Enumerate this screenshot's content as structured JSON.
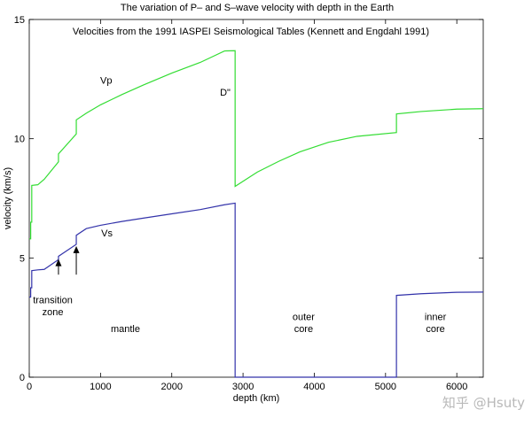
{
  "chart_data": {
    "type": "line",
    "title": "The variation of P– and S–wave velocity with depth in the Earth",
    "subtitle": "Velocities from the 1991 IASPEI Seismological Tables (Kennett and Engdahl 1991)",
    "xlabel": "depth (km)",
    "ylabel": "velocity (km/s)",
    "xlim": [
      0,
      6371
    ],
    "ylim": [
      0,
      15
    ],
    "xticks": [
      0,
      1000,
      2000,
      3000,
      4000,
      5000,
      6000
    ],
    "yticks": [
      0,
      5,
      10,
      15
    ],
    "grid": false,
    "series": [
      {
        "name": "Vp",
        "color": "#33dd33",
        "points": [
          [
            0,
            5.8
          ],
          [
            20,
            5.8
          ],
          [
            20,
            6.5
          ],
          [
            35,
            6.5
          ],
          [
            35,
            8.04
          ],
          [
            120,
            8.07
          ],
          [
            210,
            8.3
          ],
          [
            210,
            8.3
          ],
          [
            410,
            9.03
          ],
          [
            410,
            9.36
          ],
          [
            660,
            10.2
          ],
          [
            660,
            10.79
          ],
          [
            800,
            11.07
          ],
          [
            1000,
            11.42
          ],
          [
            1300,
            11.85
          ],
          [
            1600,
            12.25
          ],
          [
            2000,
            12.75
          ],
          [
            2400,
            13.2
          ],
          [
            2740,
            13.68
          ],
          [
            2889,
            13.69
          ],
          [
            2889,
            8.0
          ],
          [
            3200,
            8.6
          ],
          [
            3500,
            9.05
          ],
          [
            3800,
            9.45
          ],
          [
            4200,
            9.85
          ],
          [
            4600,
            10.1
          ],
          [
            5153,
            10.26
          ],
          [
            5153,
            11.04
          ],
          [
            5500,
            11.14
          ],
          [
            6000,
            11.24
          ],
          [
            6371,
            11.26
          ]
        ]
      },
      {
        "name": "Vs",
        "color": "#3333aa",
        "points": [
          [
            0,
            3.36
          ],
          [
            20,
            3.36
          ],
          [
            20,
            3.75
          ],
          [
            35,
            3.75
          ],
          [
            35,
            4.47
          ],
          [
            120,
            4.5
          ],
          [
            210,
            4.52
          ],
          [
            210,
            4.52
          ],
          [
            410,
            4.93
          ],
          [
            410,
            5.07
          ],
          [
            660,
            5.57
          ],
          [
            660,
            5.95
          ],
          [
            800,
            6.23
          ],
          [
            1000,
            6.37
          ],
          [
            1300,
            6.53
          ],
          [
            1600,
            6.67
          ],
          [
            2000,
            6.85
          ],
          [
            2400,
            7.03
          ],
          [
            2740,
            7.23
          ],
          [
            2889,
            7.3
          ],
          [
            2889,
            0
          ],
          [
            5153,
            0
          ],
          [
            5153,
            3.43
          ],
          [
            5500,
            3.5
          ],
          [
            6000,
            3.56
          ],
          [
            6371,
            3.57
          ]
        ]
      }
    ],
    "annotations": [
      {
        "text": "Vp",
        "x": 1080,
        "y": 12.3
      },
      {
        "text": "Vs",
        "x": 1090,
        "y": 5.9
      },
      {
        "text": "D\"",
        "x": 2750,
        "y": 11.8
      },
      {
        "text": "transition",
        "x": 330,
        "y": 3.1
      },
      {
        "text": "zone",
        "x": 330,
        "y": 2.6
      },
      {
        "text": "mantle",
        "x": 1350,
        "y": 1.9
      },
      {
        "text": "outer",
        "x": 3850,
        "y": 2.4
      },
      {
        "text": "core",
        "x": 3850,
        "y": 1.9
      },
      {
        "text": "inner",
        "x": 5700,
        "y": 2.4
      },
      {
        "text": "core",
        "x": 5700,
        "y": 1.9
      }
    ],
    "arrows": [
      {
        "label": "410",
        "x": 410,
        "y_from": 4.3,
        "y_to": 4.95
      },
      {
        "label": "660",
        "x": 660,
        "y_from": 4.3,
        "y_to": 5.5
      }
    ]
  },
  "watermark": "知乎 @Hsuty"
}
